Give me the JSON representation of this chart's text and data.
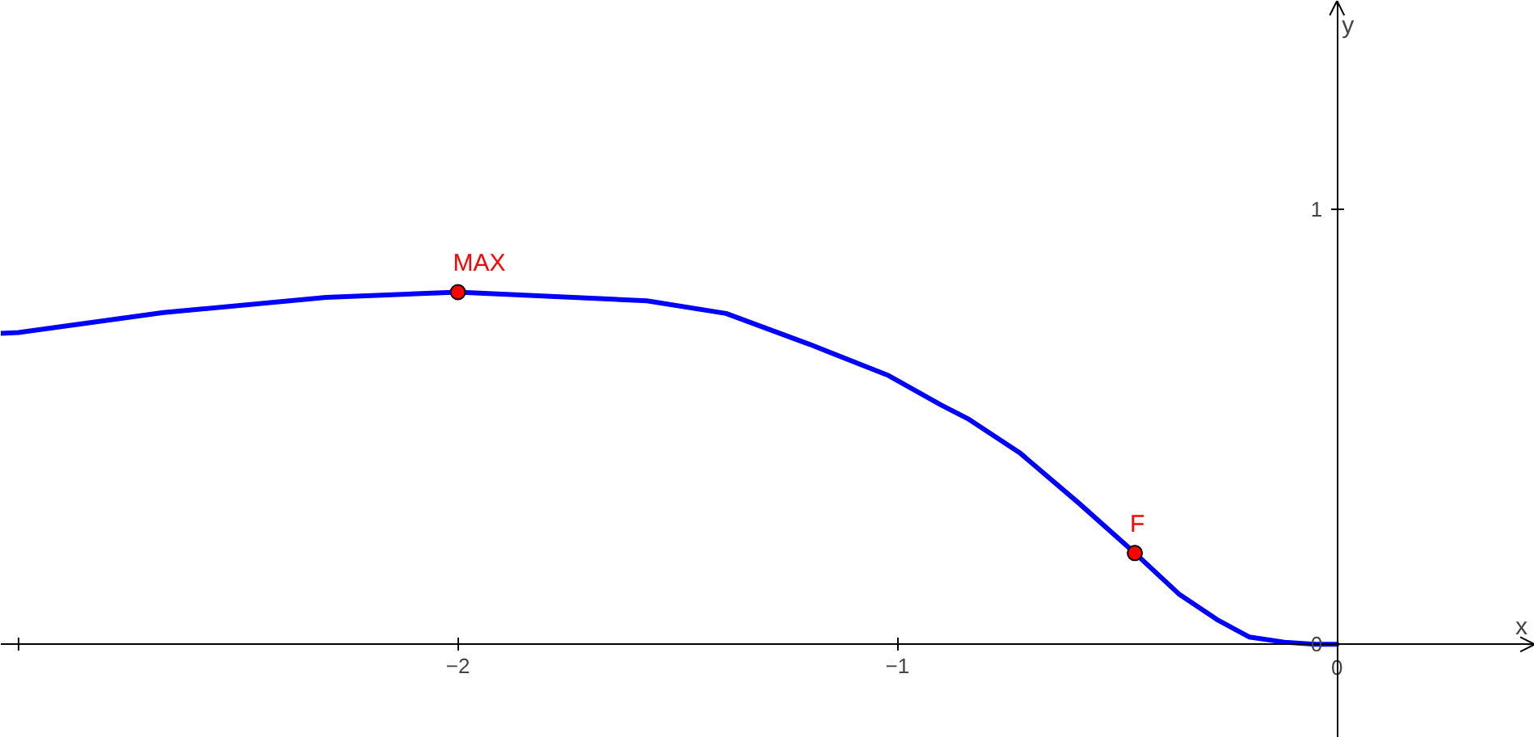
{
  "chart_data": {
    "type": "line",
    "xlabel": "x",
    "ylabel": "y",
    "xlim": [
      -3.04,
      0.45
    ],
    "ylim": [
      -0.215,
      1.48
    ],
    "xticks": [
      {
        "value": -3,
        "label": null
      },
      -2,
      -1,
      0
    ],
    "yticks": [
      0,
      1
    ],
    "series": [
      {
        "color": "#0000ff",
        "x": [
          -3.04,
          -3.0,
          -2.67,
          -2.3,
          -2.0,
          -1.57,
          -1.39,
          -1.2,
          -1.02,
          -0.9,
          -0.84,
          -0.72,
          -0.59,
          -0.46,
          -0.36,
          -0.27,
          -0.2,
          -0.12,
          -0.05,
          0
        ],
        "values": [
          0.715,
          0.717,
          0.763,
          0.798,
          0.81,
          0.79,
          0.761,
          0.69,
          0.618,
          0.55,
          0.519,
          0.439,
          0.327,
          0.21,
          0.116,
          0.055,
          0.017,
          0.005,
          0,
          0
        ]
      },
      {
        "type": "scatter",
        "name": "MAX",
        "color": "#ff0000",
        "marker": "circle",
        "x": [
          -2.0
        ],
        "values": [
          0.81
        ]
      },
      {
        "type": "scatter",
        "name": "F",
        "color": "#ff0000",
        "marker": "circle",
        "x": [
          -0.46
        ],
        "values": [
          0.21
        ]
      }
    ]
  }
}
